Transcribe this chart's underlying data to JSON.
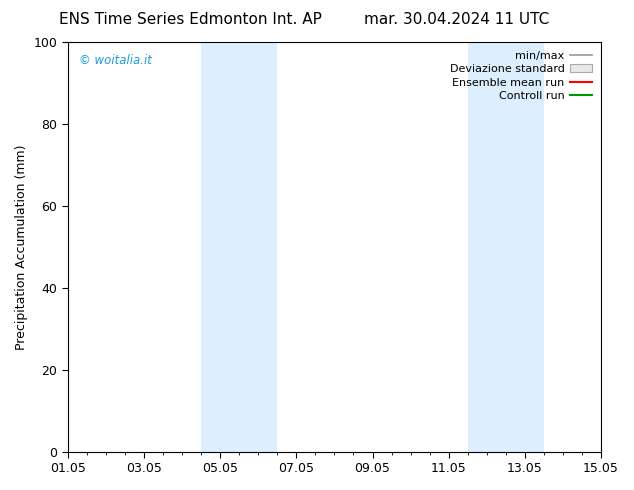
{
  "title_left": "ENS Time Series Edmonton Int. AP",
  "title_right": "mar. 30.04.2024 11 UTC",
  "ylabel": "Precipitation Accumulation (mm)",
  "xlabel": "",
  "ylim": [
    0,
    100
  ],
  "yticks": [
    0,
    20,
    40,
    60,
    80,
    100
  ],
  "xtick_labels": [
    "01.05",
    "03.05",
    "05.05",
    "07.05",
    "09.05",
    "11.05",
    "13.05",
    "15.05"
  ],
  "xtick_positions": [
    0,
    2,
    4,
    6,
    8,
    10,
    12,
    14
  ],
  "x_total_days": 14,
  "shaded_bands": [
    {
      "xstart": 3.5,
      "xend": 4.5,
      "color": "#ddeeff"
    },
    {
      "xstart": 4.5,
      "xend": 5.5,
      "color": "#ddeeff"
    },
    {
      "xstart": 10.5,
      "xend": 11.5,
      "color": "#ddeeff"
    },
    {
      "xstart": 11.5,
      "xend": 12.5,
      "color": "#ddeeff"
    }
  ],
  "watermark": "© woitalia.it",
  "watermark_color": "#1a9cd8",
  "legend_labels": [
    "min/max",
    "Deviazione standard",
    "Ensemble mean run",
    "Controll run"
  ],
  "legend_line_colors": [
    "#999999",
    "#cccccc",
    "#ff0000",
    "#009900"
  ],
  "background_color": "#ffffff",
  "title_fontsize": 11,
  "axis_fontsize": 9,
  "tick_fontsize": 9,
  "band_color": "#ddeeff"
}
